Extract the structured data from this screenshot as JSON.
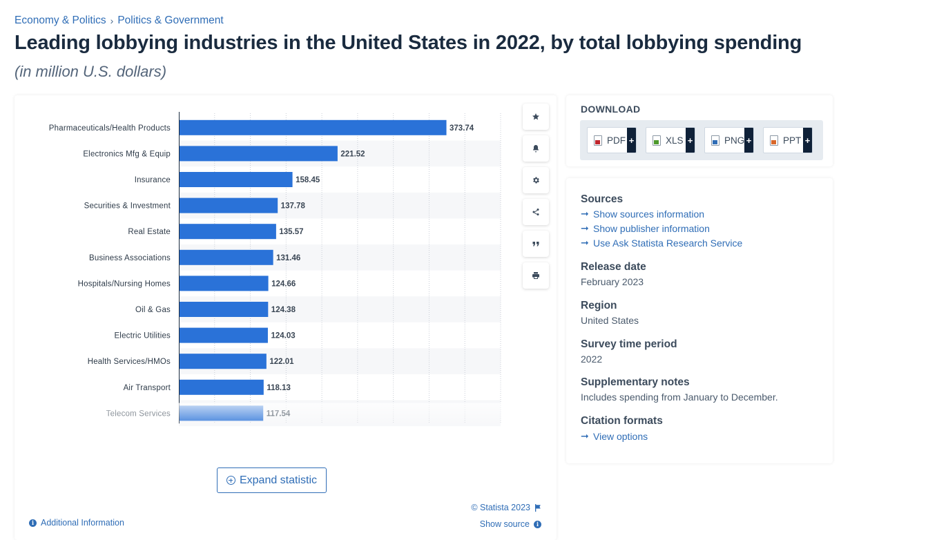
{
  "breadcrumb": {
    "items": [
      "Economy & Politics",
      "Politics & Government"
    ],
    "separator": "›"
  },
  "page": {
    "title": "Leading lobbying industries in the United States in 2022, by total lobbying spending",
    "subtitle": "(in million U.S. dollars)"
  },
  "chart_data": {
    "type": "bar",
    "orientation": "horizontal",
    "categories": [
      "Pharmaceuticals/Health Products",
      "Electronics Mfg & Equip",
      "Insurance",
      "Securities & Investment",
      "Real Estate",
      "Business Associations",
      "Hospitals/Nursing Homes",
      "Oil & Gas",
      "Electric Utilities",
      "Health Services/HMOs",
      "Air Transport",
      "Telecom Services"
    ],
    "values": [
      373.74,
      221.52,
      158.45,
      137.78,
      135.57,
      131.46,
      124.66,
      124.38,
      124.03,
      122.01,
      118.13,
      117.54
    ],
    "value_labels": [
      "373.74",
      "221.52",
      "158.45",
      "137.78",
      "135.57",
      "131.46",
      "124.66",
      "124.38",
      "124.03",
      "122.01",
      "118.13",
      "117.54"
    ],
    "xlim": [
      0,
      450
    ],
    "grid": true,
    "bar_color": "#2a72d8",
    "last_row_faded": true
  },
  "toolbar": {
    "icons": [
      "star-icon",
      "bell-icon",
      "gear-icon",
      "share-icon",
      "quote-icon",
      "print-icon"
    ]
  },
  "chart_footer": {
    "expand_label": "Expand statistic",
    "copyright": "© Statista 2023",
    "show_source": "Show source",
    "additional_info": "Additional Information"
  },
  "download": {
    "title": "DOWNLOAD",
    "buttons": [
      {
        "label": "PDF",
        "color": "#c0262d"
      },
      {
        "label": "XLS",
        "color": "#4e9a2c"
      },
      {
        "label": "PNG",
        "color": "#2f6db6"
      },
      {
        "label": "PPT",
        "color": "#d9682b"
      }
    ],
    "plus": "+"
  },
  "info": {
    "sources_heading": "Sources",
    "sources_links": [
      "Show sources information",
      "Show publisher information",
      "Use Ask Statista Research Service"
    ],
    "release_heading": "Release date",
    "release_value": "February 2023",
    "region_heading": "Region",
    "region_value": "United States",
    "survey_heading": "Survey time period",
    "survey_value": "2022",
    "notes_heading": "Supplementary notes",
    "notes_value": "Includes spending from January to December.",
    "citation_heading": "Citation formats",
    "citation_link": "View options"
  },
  "colors": {
    "accent": "#2f6db6",
    "bar": "#2a72d8",
    "title": "#1a2b3f"
  }
}
